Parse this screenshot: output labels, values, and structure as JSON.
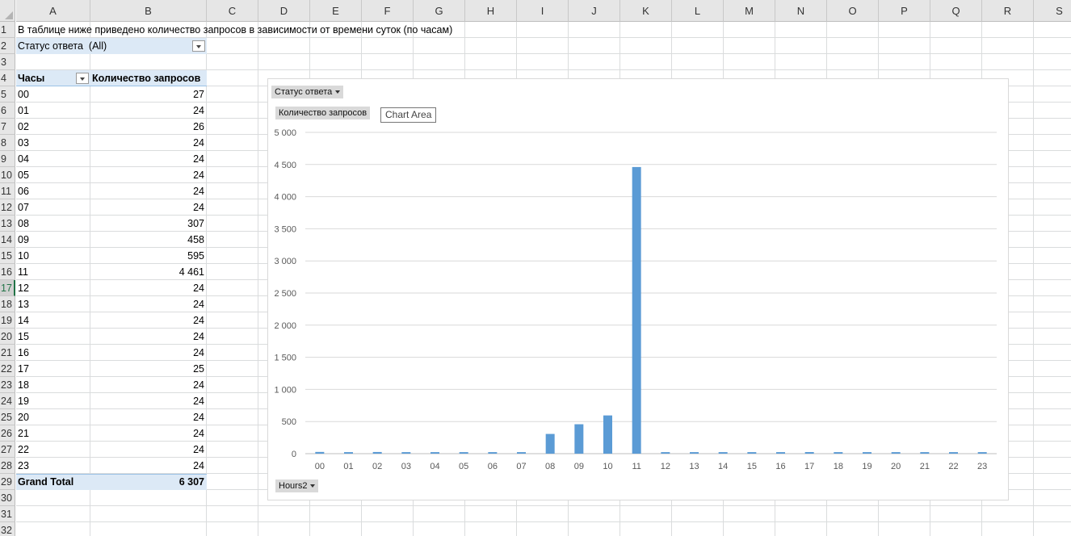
{
  "columns": [
    "A",
    "B",
    "C",
    "D",
    "E",
    "F",
    "G",
    "H",
    "I",
    "J",
    "K",
    "L",
    "M",
    "N",
    "O",
    "P",
    "Q",
    "R",
    "S"
  ],
  "rows": [
    "1",
    "2",
    "3",
    "4",
    "5",
    "6",
    "7",
    "8",
    "9",
    "10",
    "11",
    "12",
    "13",
    "14",
    "15",
    "16",
    "17",
    "18",
    "19",
    "20",
    "21",
    "22",
    "23",
    "24",
    "25",
    "26",
    "27",
    "28",
    "29",
    "30",
    "31",
    "32"
  ],
  "active_row": "17",
  "sheet": {
    "a1_text": "В таблице ниже приведено количество запросов в зависимости от времени суток (по часам)",
    "filter_label": "Статус ответа",
    "filter_value": "(All)",
    "pivot_row_header": "Часы",
    "pivot_value_header": "Количество запросов",
    "pivot_rows": [
      {
        "hour": "00",
        "count": "27"
      },
      {
        "hour": "01",
        "count": "24"
      },
      {
        "hour": "02",
        "count": "26"
      },
      {
        "hour": "03",
        "count": "24"
      },
      {
        "hour": "04",
        "count": "24"
      },
      {
        "hour": "05",
        "count": "24"
      },
      {
        "hour": "06",
        "count": "24"
      },
      {
        "hour": "07",
        "count": "24"
      },
      {
        "hour": "08",
        "count": "307"
      },
      {
        "hour": "09",
        "count": "458"
      },
      {
        "hour": "10",
        "count": "595"
      },
      {
        "hour": "11",
        "count": "4 461"
      },
      {
        "hour": "12",
        "count": "24"
      },
      {
        "hour": "13",
        "count": "24"
      },
      {
        "hour": "14",
        "count": "24"
      },
      {
        "hour": "15",
        "count": "24"
      },
      {
        "hour": "16",
        "count": "24"
      },
      {
        "hour": "17",
        "count": "25"
      },
      {
        "hour": "18",
        "count": "24"
      },
      {
        "hour": "19",
        "count": "24"
      },
      {
        "hour": "20",
        "count": "24"
      },
      {
        "hour": "21",
        "count": "24"
      },
      {
        "hour": "22",
        "count": "24"
      },
      {
        "hour": "23",
        "count": "24"
      }
    ],
    "grand_total_label": "Grand Total",
    "grand_total_value": "6 307"
  },
  "chart": {
    "filter_button": "Статус ответа",
    "value_button": "Количество запросов",
    "axis_button": "Hours2",
    "tooltip": "Chart Area",
    "bar_color": "#5b9bd5"
  },
  "chart_data": {
    "type": "bar",
    "categories": [
      "00",
      "01",
      "02",
      "03",
      "04",
      "05",
      "06",
      "07",
      "08",
      "09",
      "10",
      "11",
      "12",
      "13",
      "14",
      "15",
      "16",
      "17",
      "18",
      "19",
      "20",
      "21",
      "22",
      "23"
    ],
    "series": [
      {
        "values": [
          27,
          24,
          26,
          24,
          24,
          24,
          24,
          24,
          307,
          458,
          595,
          4461,
          24,
          24,
          24,
          24,
          24,
          25,
          24,
          24,
          24,
          24,
          24,
          24
        ]
      }
    ],
    "ylim": [
      0,
      5000
    ],
    "yticks": [
      0,
      500,
      1000,
      1500,
      2000,
      2500,
      3000,
      3500,
      4000,
      4500,
      5000
    ],
    "ytick_labels": [
      "0",
      "500",
      "1 000",
      "1 500",
      "2 000",
      "2 500",
      "3 000",
      "3 500",
      "4 000",
      "4 500",
      "5 000"
    ],
    "grid": true,
    "legend": "none"
  }
}
